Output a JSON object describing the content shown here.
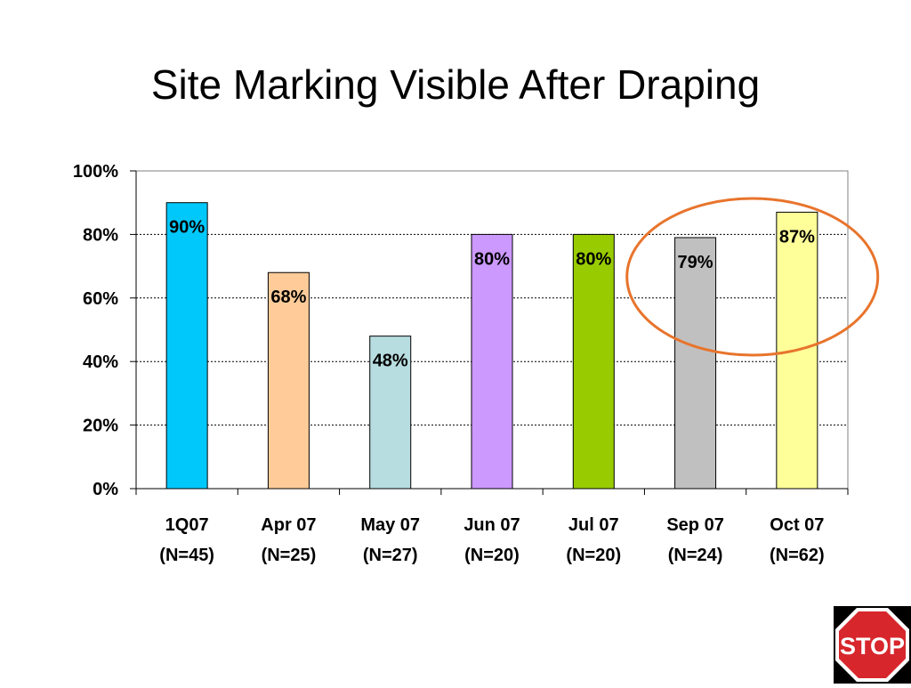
{
  "slide": {
    "title": "Site Marking Visible After Draping"
  },
  "stop_sign": {
    "text": "STOP",
    "icon": "stop-sign-icon",
    "colors": {
      "fill": "#d7262c",
      "border": "#ffffff",
      "backdrop": "#000000"
    }
  },
  "highlight": {
    "description_color": "#e8742c",
    "targets": [
      "Sep 07 (N=24)",
      "Oct 07 (N=62)"
    ]
  },
  "chart_data": {
    "type": "bar",
    "title": "Site Marking Visible After Draping",
    "categories": [
      "1Q07",
      "Apr 07",
      "May 07",
      "Jun 07",
      "Jul 07",
      "Sep 07",
      "Oct 07"
    ],
    "category_sublabels": [
      "(N=45)",
      "(N=25)",
      "(N=27)",
      "(N=20)",
      "(N=20)",
      "(N=24)",
      "(N=62)"
    ],
    "values": [
      90,
      68,
      48,
      80,
      80,
      79,
      87
    ],
    "data_labels": [
      "90%",
      "68%",
      "48%",
      "80%",
      "80%",
      "79%",
      "87%"
    ],
    "bar_colors": [
      "#00c8fa",
      "#ffcc99",
      "#b8dde1",
      "#cc99ff",
      "#99cc00",
      "#c0c0c0",
      "#ffff99"
    ],
    "ylim": [
      0,
      100
    ],
    "y_ticks": [
      "0%",
      "20%",
      "40%",
      "60%",
      "80%",
      "100%"
    ],
    "xlabel": "",
    "ylabel": "",
    "grid": true,
    "legend": "none"
  }
}
